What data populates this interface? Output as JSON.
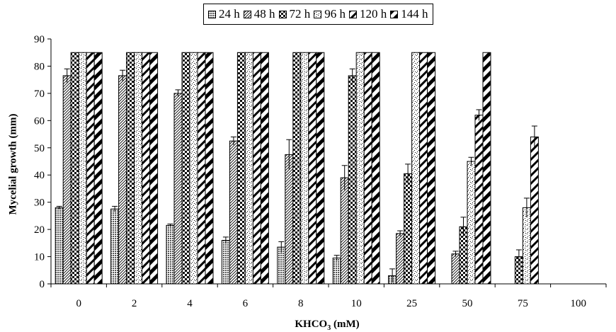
{
  "chart_data": {
    "type": "bar",
    "title": "",
    "xlabel": {
      "main": "KHCO",
      "sub": "3",
      "unit": " (mM)"
    },
    "ylabel": "Mycelial growth (mm)",
    "ylim": [
      0,
      90
    ],
    "yticks": [
      0,
      10,
      20,
      30,
      40,
      50,
      60,
      70,
      80,
      90
    ],
    "categories": [
      "0",
      "2",
      "4",
      "6",
      "8",
      "10",
      "25",
      "50",
      "75",
      "100"
    ],
    "legend_position": "top-center",
    "series": [
      {
        "name": "24 h",
        "pattern": "dots",
        "values": [
          28,
          27.5,
          21.5,
          16,
          13.5,
          9.5,
          3,
          null,
          null,
          null
        ],
        "errors": [
          0.5,
          1,
          0.5,
          1.2,
          2,
          1,
          2.5,
          null,
          null,
          null
        ]
      },
      {
        "name": "48 h",
        "pattern": "diag-fine",
        "values": [
          76.5,
          76.5,
          70,
          52.5,
          47.5,
          39,
          18.5,
          11,
          null,
          null
        ],
        "errors": [
          2.5,
          2,
          1.3,
          1.5,
          5.5,
          4.5,
          1,
          1,
          null,
          null
        ]
      },
      {
        "name": "72 h",
        "pattern": "check",
        "values": [
          85,
          85,
          85,
          85,
          85,
          76.5,
          40.5,
          21,
          10,
          null
        ],
        "errors": [
          null,
          null,
          null,
          null,
          null,
          2.5,
          3.5,
          3.5,
          2.5,
          null
        ]
      },
      {
        "name": "96 h",
        "pattern": "speckle",
        "values": [
          85,
          85,
          85,
          85,
          85,
          85,
          85,
          45,
          28,
          null
        ],
        "errors": [
          null,
          null,
          null,
          null,
          null,
          null,
          null,
          1.5,
          3.5,
          null
        ]
      },
      {
        "name": "120 h",
        "pattern": "diag-med",
        "values": [
          85,
          85,
          85,
          85,
          85,
          85,
          85,
          62,
          54,
          null
        ],
        "errors": [
          null,
          null,
          null,
          null,
          null,
          null,
          null,
          2,
          4,
          null
        ]
      },
      {
        "name": "144 h",
        "pattern": "diag-bold",
        "values": [
          85,
          85,
          85,
          85,
          85,
          85,
          85,
          85,
          null,
          null
        ],
        "errors": [
          null,
          null,
          null,
          null,
          null,
          null,
          null,
          null,
          null,
          null
        ]
      }
    ]
  }
}
